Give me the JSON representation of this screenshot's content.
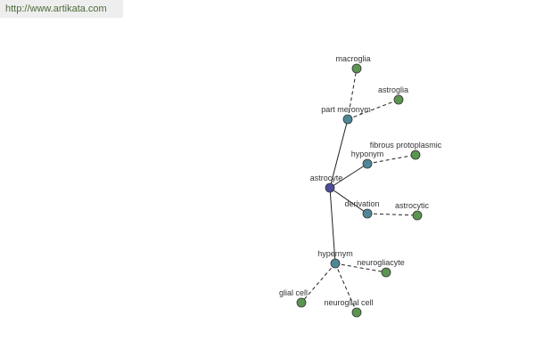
{
  "header": {
    "url": "http://www.artikata.com"
  },
  "nodes": [
    {
      "label": "astrocyte"
    },
    {
      "label": "part meronym"
    },
    {
      "label": "macroglia"
    },
    {
      "label": "astroglia"
    },
    {
      "label": "hyponym"
    },
    {
      "label": "fibrous protoplasmic"
    },
    {
      "label": "derivation"
    },
    {
      "label": "astrocytic"
    },
    {
      "label": "hypernym"
    },
    {
      "label": "neurogliacyte"
    },
    {
      "label": "glial cell"
    },
    {
      "label": "neuroglial cell"
    }
  ]
}
